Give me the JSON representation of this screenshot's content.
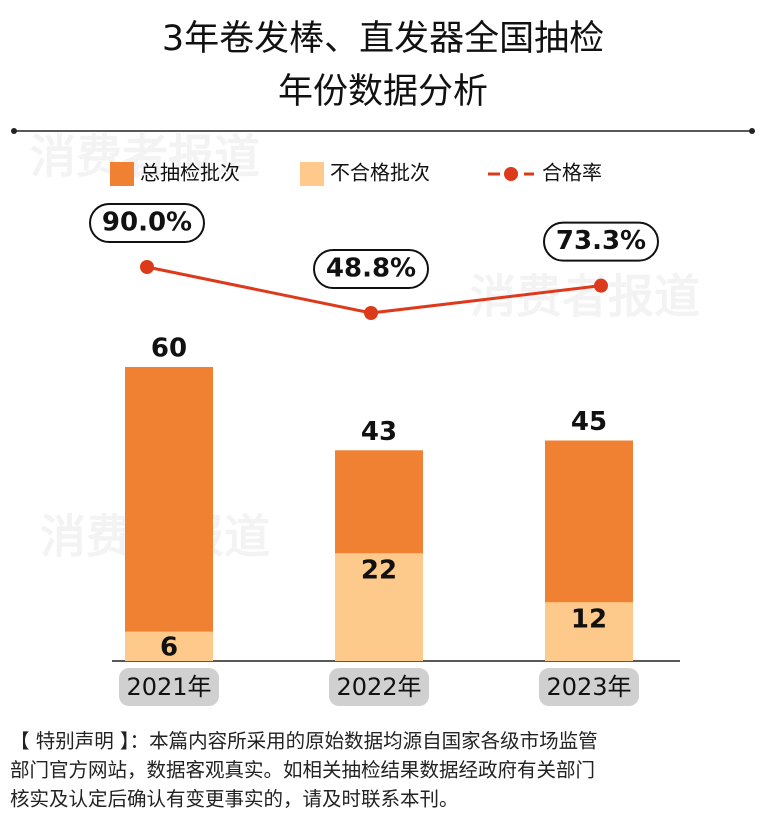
{
  "chart_data": {
    "type": "bar-line",
    "title": [
      "3年卷发棒、直发器全国抽检",
      "年份数据分析"
    ],
    "watermark": "消费者报道",
    "categories": [
      "2021年",
      "2022年",
      "2023年"
    ],
    "series": [
      {
        "name": "总抽检批次",
        "color": "#f08032",
        "values": [
          60,
          43,
          45
        ]
      },
      {
        "name": "不合格批次",
        "color": "#fdca8c",
        "values": [
          6,
          22,
          12
        ]
      },
      {
        "name": "合格率",
        "color": "#dd3a1c",
        "type": "line",
        "values": [
          90.0,
          48.8,
          73.3
        ],
        "value_labels": [
          "90.0%",
          "48.8%",
          "73.3%"
        ]
      }
    ],
    "note": [
      "【 特别声明 】：本篇内容所采用的原始数据均源自国家各级市场监管",
      "部门官方网站，数据客观真实。如相关抽检结果数据经政府有关部门",
      "核实及认定后确认有变更事实的，请及时联系本刊。"
    ]
  }
}
